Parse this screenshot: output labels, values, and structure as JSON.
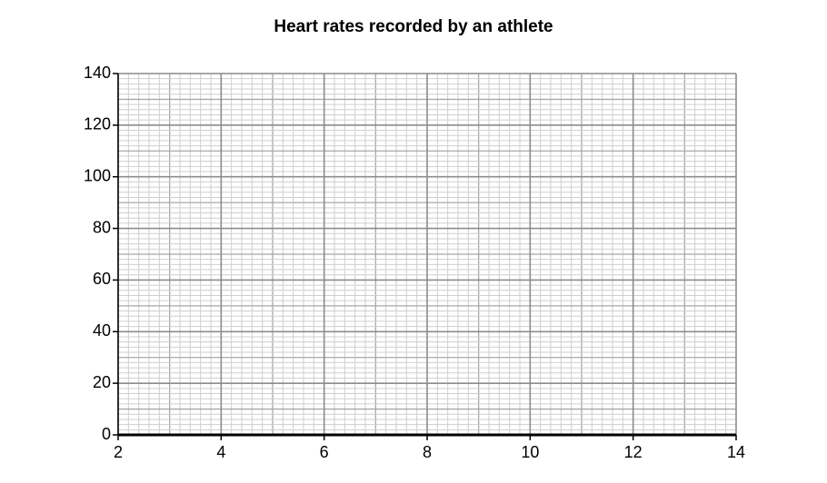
{
  "chart_data": {
    "type": "line",
    "title": "Heart rates recorded by an athlete",
    "xlim": [
      2,
      14
    ],
    "xticks": [
      2,
      4,
      6,
      8,
      10,
      12,
      14
    ],
    "ylim": [
      0,
      140
    ],
    "yticks": [
      0,
      20,
      40,
      60,
      80,
      100,
      120,
      140
    ],
    "grid": true
  }
}
